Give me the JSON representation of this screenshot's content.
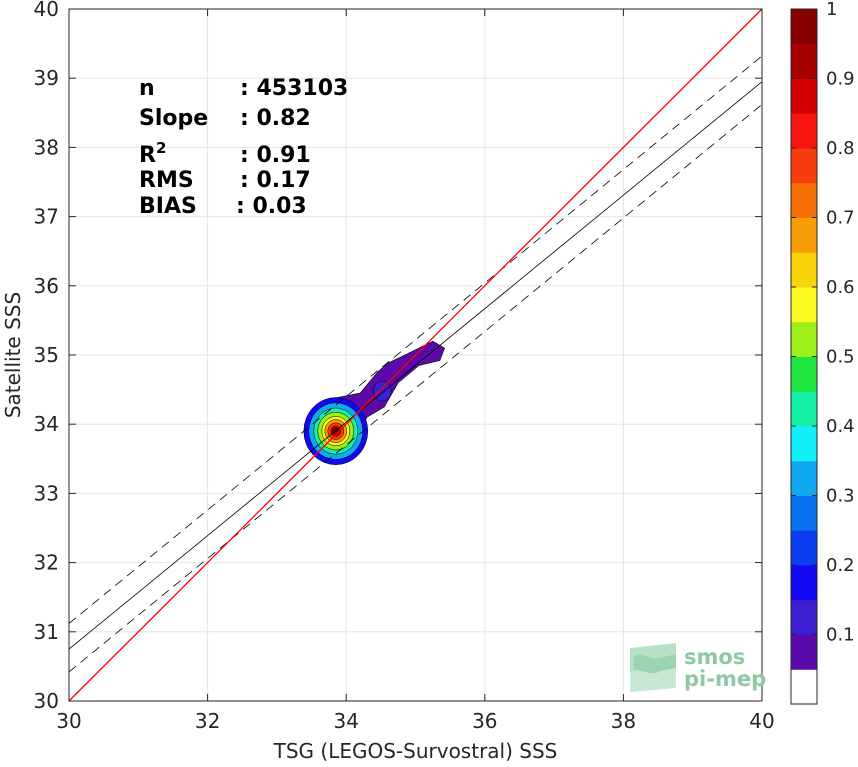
{
  "chart_data": {
    "type": "heatmap",
    "title": "",
    "xlabel": "TSG (LEGOS-Survostral) SSS",
    "ylabel": "Satellite SSS",
    "xlim": [
      30,
      40
    ],
    "ylim": [
      30,
      40
    ],
    "xticks": [
      30,
      32,
      34,
      36,
      38,
      40
    ],
    "yticks": [
      30,
      31,
      32,
      33,
      34,
      35,
      36,
      37,
      38,
      39,
      40
    ],
    "grid": true,
    "identity_line": {
      "x": [
        30,
        40
      ],
      "y": [
        30,
        40
      ],
      "color": "#ff0000"
    },
    "regression_line": {
      "x": [
        30,
        40
      ],
      "y": [
        30.75,
        38.95
      ],
      "color": "#000000"
    },
    "envelope_upper": {
      "x": [
        30,
        40
      ],
      "y": [
        31.12,
        39.32
      ],
      "style": "dashed"
    },
    "envelope_lower": {
      "x": [
        30,
        40
      ],
      "y": [
        30.42,
        38.62
      ],
      "style": "dashed"
    },
    "density_peak": {
      "x": 33.85,
      "y": 33.9
    },
    "stats": [
      {
        "label": "n",
        "value": ": 453103"
      },
      {
        "label": "Slope",
        "value": ": 0.82"
      },
      {
        "label": "R",
        "sup": "2",
        "value": ": 0.91"
      },
      {
        "label": "RMS",
        "value": ": 0.17"
      },
      {
        "label": "BIAS",
        "value": ": 0.03"
      }
    ],
    "colorbar": {
      "range": [
        0,
        1
      ],
      "ticks": [
        "0.1",
        "0.2",
        "0.3",
        "0.4",
        "0.5",
        "0.6",
        "0.7",
        "0.8",
        "0.9",
        "1"
      ],
      "tick_values": [
        0.1,
        0.2,
        0.3,
        0.4,
        0.5,
        0.6,
        0.7,
        0.8,
        0.9,
        1.0
      ],
      "colors": [
        "#ffffff",
        "#5a0aa8",
        "#3d1ed1",
        "#1208f2",
        "#0a3ef0",
        "#0a72f0",
        "#10a8ef",
        "#12eefa",
        "#14f0a6",
        "#1fe640",
        "#9dee1b",
        "#f9f820",
        "#fad40b",
        "#f99d07",
        "#f86f08",
        "#f73d0e",
        "#f8150e",
        "#d10000",
        "#a70000",
        "#870000"
      ]
    }
  },
  "watermark": {
    "line1": "smos",
    "line2": "pi-mep"
  }
}
